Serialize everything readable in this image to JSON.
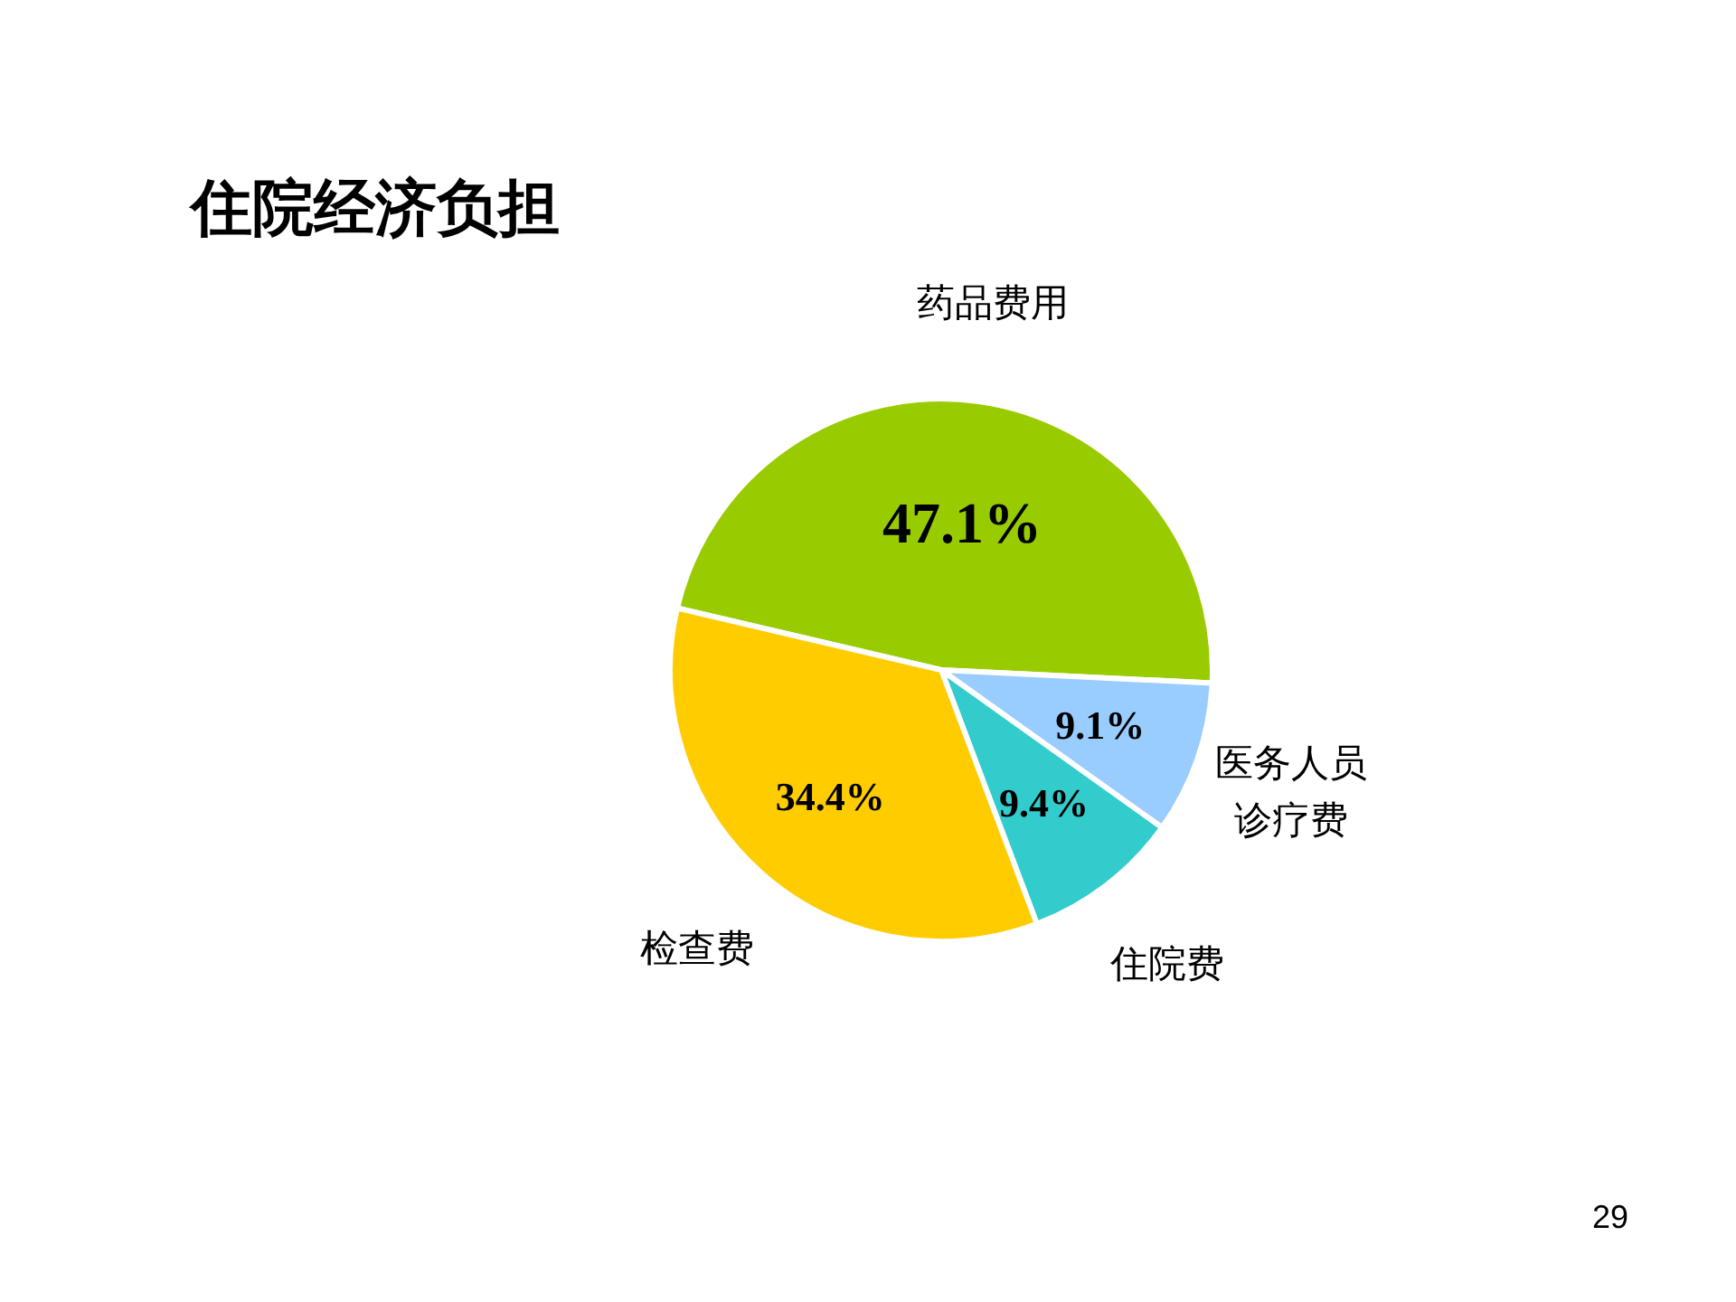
{
  "chart_data": {
    "type": "pie",
    "title": "住院经济负担",
    "categories": [
      "药品费用",
      "医务人员诊疗费",
      "住院费",
      "检查费"
    ],
    "values": [
      47.1,
      9.1,
      9.4,
      34.4
    ],
    "colors": [
      "#99cc00",
      "#99ccff",
      "#33cccc",
      "#ffcc00"
    ],
    "value_labels": [
      "47.1%",
      "9.1%",
      "9.4%",
      "34.4%"
    ],
    "annotations": [
      "29"
    ]
  }
}
